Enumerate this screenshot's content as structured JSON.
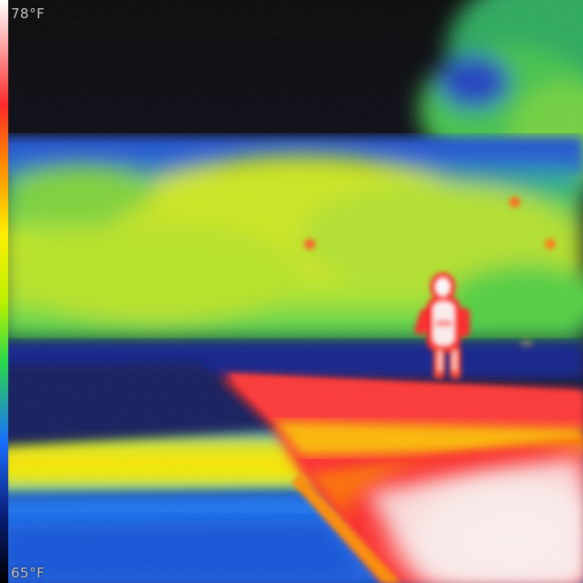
{
  "scale": {
    "max_label": "78°F",
    "min_label": "65°F"
  },
  "palette": {
    "hot_white": "#ffffff",
    "hot_red": "#ff2a2a",
    "warm_orange": "#ff8a00",
    "warm_yellow": "#ffee00",
    "mid_lime": "#b8f000",
    "mid_green": "#2bd84a",
    "cool_blue": "#1a6cff",
    "cold_navy": "#0b1f7a",
    "cold_black": "#000000"
  },
  "scene_icons": {
    "figure": "person-figure-icon"
  }
}
